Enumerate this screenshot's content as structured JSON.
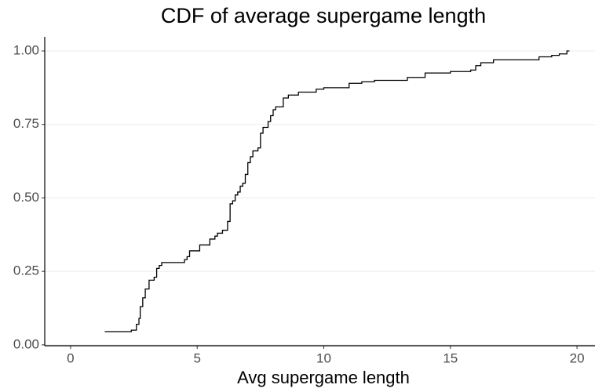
{
  "chart_data": {
    "type": "step",
    "title": "CDF of average supergame length",
    "x_label": "Avg supergame length",
    "x": [
      1.35,
      2.4,
      2.6,
      2.7,
      2.75,
      2.85,
      2.95,
      3.1,
      3.3,
      3.4,
      3.5,
      3.6,
      4.4,
      4.5,
      4.6,
      4.7,
      5.0,
      5.1,
      5.4,
      5.5,
      5.7,
      5.8,
      6.0,
      6.2,
      6.3,
      6.4,
      6.5,
      6.6,
      6.7,
      6.8,
      6.9,
      7.0,
      7.1,
      7.2,
      7.4,
      7.5,
      7.6,
      7.8,
      7.9,
      8.0,
      8.1,
      8.3,
      8.4,
      8.6,
      9.0,
      9.5,
      9.7,
      10.0,
      10.8,
      11.0,
      11.5,
      12.0,
      13.2,
      13.3,
      14.0,
      15.0,
      15.8,
      16.0,
      16.2,
      16.7,
      18.3,
      18.5,
      19.0,
      19.3,
      19.6,
      19.7
    ],
    "values": [
      0.045,
      0.05,
      0.07,
      0.09,
      0.13,
      0.16,
      0.19,
      0.22,
      0.23,
      0.26,
      0.27,
      0.28,
      0.28,
      0.29,
      0.3,
      0.32,
      0.32,
      0.34,
      0.34,
      0.36,
      0.37,
      0.38,
      0.39,
      0.42,
      0.48,
      0.49,
      0.51,
      0.52,
      0.54,
      0.55,
      0.58,
      0.62,
      0.64,
      0.66,
      0.67,
      0.72,
      0.74,
      0.76,
      0.78,
      0.8,
      0.81,
      0.81,
      0.84,
      0.85,
      0.86,
      0.86,
      0.87,
      0.875,
      0.875,
      0.89,
      0.895,
      0.9,
      0.9,
      0.91,
      0.925,
      0.93,
      0.935,
      0.95,
      0.96,
      0.97,
      0.97,
      0.98,
      0.985,
      0.99,
      1.0,
      1.0
    ],
    "color": "#000000",
    "xlim": [
      -1.02,
      20.71
    ],
    "xticks": [
      0,
      5,
      10,
      15,
      20
    ],
    "ylim": [
      -0.003,
      1.048
    ],
    "yticks": [
      {
        "value": 0,
        "label": "0.00"
      },
      {
        "value": 0.25,
        "label": "0.25"
      },
      {
        "value": 0.5,
        "label": "0.50"
      },
      {
        "value": 0.75,
        "label": "0.75"
      },
      {
        "value": 1,
        "label": "1.00"
      }
    ],
    "grid": true
  }
}
